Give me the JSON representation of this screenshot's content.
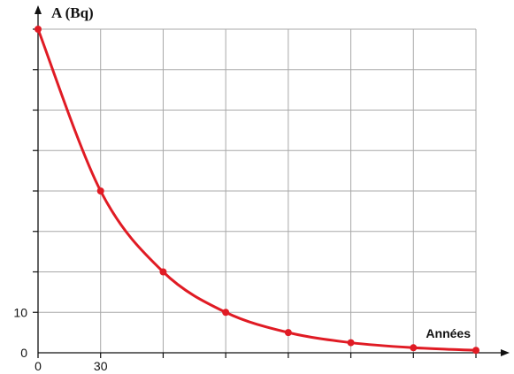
{
  "chart_data": {
    "type": "line",
    "ylabel": "A (Bq)",
    "xlabel": "Années",
    "x_tick_labels": [
      {
        "value": 0,
        "label": "0"
      },
      {
        "value": 30,
        "label": "30"
      }
    ],
    "y_tick_labels": [
      {
        "value": 0,
        "label": "0"
      },
      {
        "value": 10,
        "label": "10"
      }
    ],
    "xlim": [
      0,
      210
    ],
    "ylim": [
      0,
      80
    ],
    "grid": true,
    "series": [
      {
        "color": "#e01b24",
        "points": [
          {
            "x": 0,
            "y": 80
          },
          {
            "x": 30,
            "y": 40
          },
          {
            "x": 60,
            "y": 20
          },
          {
            "x": 90,
            "y": 10
          },
          {
            "x": 120,
            "y": 5
          },
          {
            "x": 150,
            "y": 2.5
          },
          {
            "x": 180,
            "y": 1.25
          },
          {
            "x": 210,
            "y": 0.6
          }
        ]
      }
    ]
  }
}
